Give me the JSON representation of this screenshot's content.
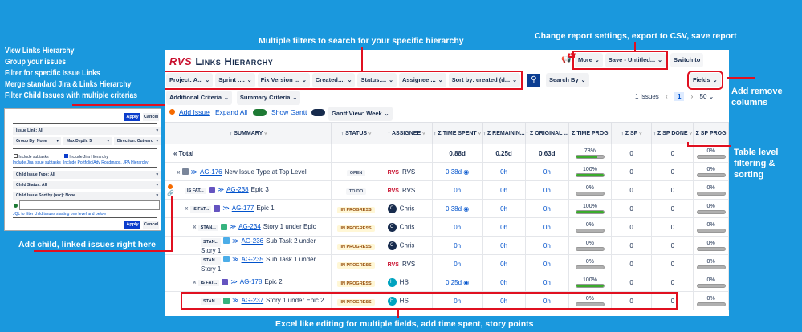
{
  "annotations": {
    "left": [
      "View Links Hierarchy",
      "Group your issues",
      "Filter for specific Issue Links",
      "Merge standard Jira & Links Hierarchy",
      "Filter Child Issues with multiple criterias"
    ],
    "filters": "Multiple filters to search for your specific hierarchy",
    "settings": "Change report settings, export to CSV, save report",
    "columns": "Add remove columns",
    "table": "Table level filtering & sorting",
    "child": "Add child, linked issues right here",
    "excel": "Excel like editing for multiple fields, add time spent, story points"
  },
  "app": {
    "logo_mark": "RVS",
    "title": "Links Hierarchy",
    "notifications": "17",
    "more": "More",
    "save": "Save - Untitled...",
    "switch": "Switch to",
    "filters": [
      "Project: A...",
      "Sprint :...",
      "Fix Version ...",
      "Created:...",
      "Status:...",
      "Assignee ...",
      "Sort by: created (d..."
    ],
    "search_by": "Search By",
    "fields": "Fields",
    "additional": "Additional Criteria",
    "summary_criteria": "Summary Criteria",
    "issues_count": "1 Issues",
    "page": "1",
    "page_size": "50",
    "add_issue": "Add Issue",
    "expand_all": "Expand All",
    "show_gantt": "Show Gantt",
    "gantt_view": "Gantt View: Week"
  },
  "table": {
    "headers": [
      "↑ SUMMARY",
      "↑ STATUS",
      "↑ ASSIGNEE",
      "↑ Σ TIME SPENT",
      "↑ Σ REMAININ...",
      "↑ Σ ORIGINAL ...",
      "Σ TIME PROG",
      "↑ Σ SP",
      "↑ Σ SP DONE",
      "Σ SP PROG"
    ],
    "total": {
      "label": "Total",
      "time_spent": "0.88d",
      "remaining": "0.25d",
      "original": "0.63d",
      "time_prog": 78,
      "sp": "0",
      "sp_done": "0",
      "sp_prog": 0
    },
    "rows": [
      {
        "indent": 1,
        "collapse": true,
        "link": "",
        "type": "#7a869a",
        "key": "AG-176",
        "summary": "New Issue Type at Top Level",
        "status": "OPEN",
        "status_bg": "#f4f5f7",
        "status_fg": "#42526e",
        "assignee": "RVS",
        "avatar": "rvs",
        "time_spent": "0.38d",
        "remaining": "0h",
        "original": "0h",
        "time_prog": 100,
        "sp": "0",
        "sp_done": "0",
        "sp_prog": 0
      },
      {
        "indent": 2,
        "collapse": false,
        "link": "IS FAT...",
        "type": "#6554c0",
        "key": "AG-238",
        "summary": "Epic 3",
        "status": "TO DO",
        "status_bg": "#f4f5f7",
        "status_fg": "#42526e",
        "assignee": "RVS",
        "avatar": "rvs",
        "time_spent": "0h",
        "remaining": "0h",
        "original": "0h",
        "time_prog": 0,
        "sp": "0",
        "sp_done": "0",
        "sp_prog": 0
      },
      {
        "indent": 2,
        "collapse": true,
        "link": "IS FAT...",
        "type": "#6554c0",
        "key": "AG-177",
        "summary": "Epic 1",
        "status": "IN PROGRESS",
        "status_bg": "#fff7d6",
        "status_fg": "#974f0c",
        "assignee": "Chris",
        "avatar": "#172b4d",
        "time_spent": "0.38d",
        "remaining": "0h",
        "original": "0h",
        "time_prog": 100,
        "sp": "0",
        "sp_done": "0",
        "sp_prog": 0
      },
      {
        "indent": 3,
        "collapse": true,
        "link": "STAN...",
        "type": "#36b37e",
        "key": "AG-234",
        "summary": "Story 1 under Epic",
        "status": "IN PROGRESS",
        "status_bg": "#fff7d6",
        "status_fg": "#974f0c",
        "assignee": "Chris",
        "avatar": "#172b4d",
        "time_spent": "0h",
        "remaining": "0h",
        "original": "0h",
        "time_prog": 0,
        "sp": "0",
        "sp_done": "0",
        "sp_prog": 0
      },
      {
        "indent": 4,
        "collapse": false,
        "link": "STAN...",
        "type": "#4bade8",
        "key": "AG-236",
        "summary": "Sub Task 2 under Story 1",
        "status": "IN PROGRESS",
        "status_bg": "#fff7d6",
        "status_fg": "#974f0c",
        "assignee": "Chris",
        "avatar": "#172b4d",
        "time_spent": "0h",
        "remaining": "0h",
        "original": "0h",
        "time_prog": 0,
        "sp": "0",
        "sp_done": "0",
        "sp_prog": 0
      },
      {
        "indent": 4,
        "collapse": false,
        "link": "STAN...",
        "type": "#4bade8",
        "key": "AG-235",
        "summary": "Sub Task 1 under Story 1",
        "status": "IN PROGRESS",
        "status_bg": "#fff7d6",
        "status_fg": "#974f0c",
        "assignee": "RVS",
        "avatar": "rvs",
        "time_spent": "0h",
        "remaining": "0h",
        "original": "0h",
        "time_prog": 0,
        "sp": "0",
        "sp_done": "0",
        "sp_prog": 0
      },
      {
        "indent": 3,
        "collapse": true,
        "link": "IS FAT...",
        "type": "#6554c0",
        "key": "AG-178",
        "summary": "Epic 2",
        "status": "IN PROGRESS",
        "status_bg": "#fff7d6",
        "status_fg": "#974f0c",
        "assignee": "HS",
        "avatar": "#00a3bf",
        "time_spent": "0.25d",
        "remaining": "0h",
        "original": "0h",
        "time_prog": 100,
        "sp": "0",
        "sp_done": "0",
        "sp_prog": 0
      },
      {
        "indent": 4,
        "collapse": false,
        "link": "STAN...",
        "type": "#36b37e",
        "key": "AG-237",
        "summary": "Story 1 under Epic 2",
        "status": "IN PROGRESS",
        "status_bg": "#fff7d6",
        "status_fg": "#974f0c",
        "assignee": "HS",
        "avatar": "#00a3bf",
        "time_spent": "0h",
        "remaining": "0h",
        "original": "0h",
        "time_prog": 0,
        "sp": "0",
        "sp_done": "0",
        "sp_prog": 0
      }
    ]
  },
  "popup": {
    "apply": "Apply",
    "cancel": "Cancel",
    "issue_link": "Issue Link: All",
    "group_by": "Group By: None",
    "max_depth": "Max Depth: 5",
    "direction": "Direction: Outward",
    "include_subtasks": "Include subtasks",
    "include_subtasks_help": "Include Jira issue subtasks",
    "include_subtasks_checked": false,
    "include_jira": "Include Jira Hierarchy",
    "include_jira_help": "Include Portfolio/Adv Roadmaps, JPA Hierarchy",
    "include_jira_checked": true,
    "child_type": "Child Issue Type: All",
    "child_status": "Child Status: All",
    "child_sort": "Child Issue Sort by (asc): None",
    "jql_help": "JQL to filter child issues starting one level and below"
  },
  "colors": {
    "background": "#1a98dd",
    "annotation": "#e01020",
    "primary": "#0052cc",
    "progress": "#3bab2c"
  }
}
